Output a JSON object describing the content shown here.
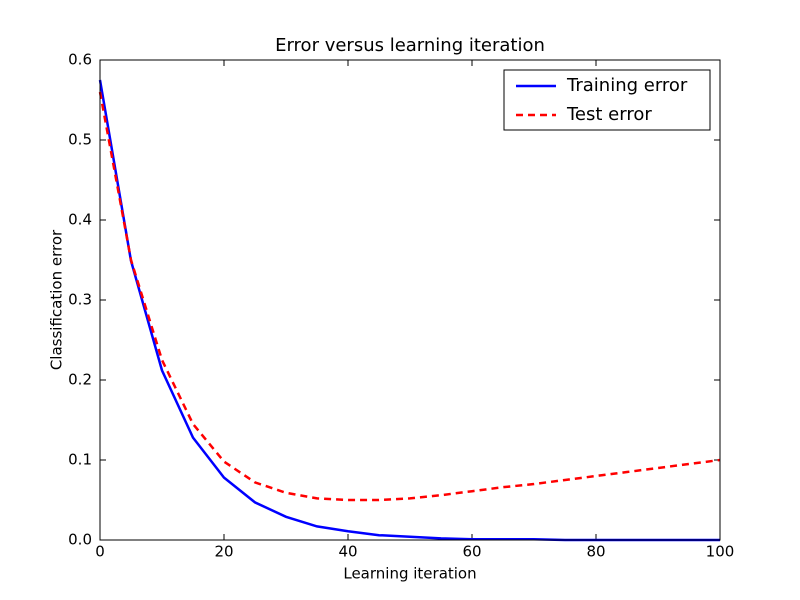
{
  "chart_data": {
    "type": "line",
    "title": "Error versus learning iteration",
    "xlabel": "Learning iteration",
    "ylabel": "Classification error",
    "x": [
      0,
      5,
      10,
      15,
      20,
      25,
      30,
      35,
      40,
      45,
      50,
      55,
      60,
      65,
      70,
      75,
      80,
      85,
      90,
      95,
      100
    ],
    "series": [
      {
        "name": "Training error",
        "color": "#0000ff",
        "dash": false,
        "values": [
          0.575,
          0.349,
          0.212,
          0.128,
          0.078,
          0.047,
          0.029,
          0.017,
          0.011,
          0.006,
          0.004,
          0.002,
          0.001,
          0.001,
          0.001,
          0,
          0,
          0,
          0,
          0,
          0
        ]
      },
      {
        "name": "Test error",
        "color": "#ff0000",
        "dash": true,
        "values": [
          0.56,
          0.35,
          0.225,
          0.145,
          0.098,
          0.072,
          0.059,
          0.052,
          0.05,
          0.05,
          0.052,
          0.056,
          0.061,
          0.066,
          0.07,
          0.075,
          0.08,
          0.085,
          0.09,
          0.095,
          0.1
        ]
      }
    ],
    "xlim": [
      0,
      100
    ],
    "xticks": [
      0,
      20,
      40,
      60,
      80,
      100
    ],
    "ylim": [
      0,
      0.6
    ],
    "yticks": [
      {
        "value": 0,
        "label": "0.0"
      },
      0.1,
      0.2,
      0.3,
      0.4,
      0.5,
      0.6
    ],
    "grid": false,
    "legend": "upper right"
  }
}
